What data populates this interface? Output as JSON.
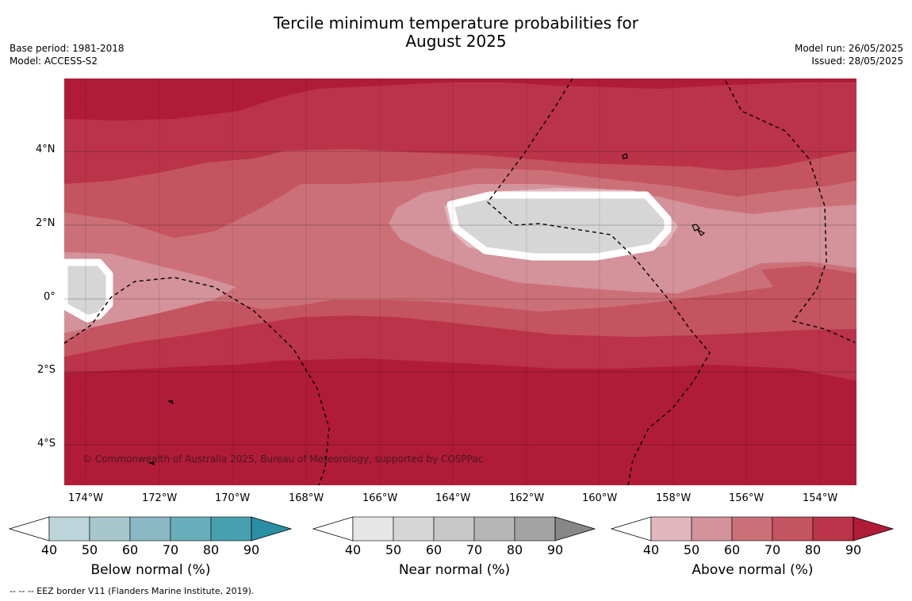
{
  "title_line1": "Tercile minimum temperature probabilities for",
  "title_line2": "August 2025",
  "base_period": "Base period: 1981-2018",
  "model": "Model: ACCESS-S2",
  "model_run": "Model run: 26/05/2025",
  "issued": "Issued: 28/05/2025",
  "copyright": "© Commonwealth of Australia 2025, Bureau of Meteorology, supported by COSPPac",
  "footer": "-- -- -- EEZ border V11 (Flanders Marine Institute, 2019).",
  "lat_labels": [
    "4°N",
    "2°N",
    "0°",
    "2°S",
    "4°S"
  ],
  "lon_labels": [
    "174°W",
    "172°W",
    "170°W",
    "168°W",
    "166°W",
    "164°W",
    "162°W",
    "160°W",
    "158°W",
    "156°W",
    "154°W"
  ],
  "colorbars": [
    {
      "label": "Below normal (%)",
      "ticks": [
        "40",
        "50",
        "60",
        "70",
        "80",
        "90"
      ],
      "colors": [
        "#bcd5db",
        "#a7c7cc",
        "#8ab8c4",
        "#6aaebb",
        "#47a0b0",
        "#2a8fa4"
      ]
    },
    {
      "label": "Near normal (%)",
      "ticks": [
        "40",
        "50",
        "60",
        "70",
        "80",
        "90"
      ],
      "colors": [
        "#e6e6e6",
        "#d6d6d6",
        "#c8c8c8",
        "#b6b6b6",
        "#a3a3a3",
        "#878787"
      ]
    },
    {
      "label": "Above normal (%)",
      "ticks": [
        "40",
        "50",
        "60",
        "70",
        "80",
        "90"
      ],
      "colors": [
        "#e2b7bd",
        "#d4929b",
        "#cc7078",
        "#c4545f",
        "#bb3348",
        "#b01c37"
      ]
    }
  ]
}
